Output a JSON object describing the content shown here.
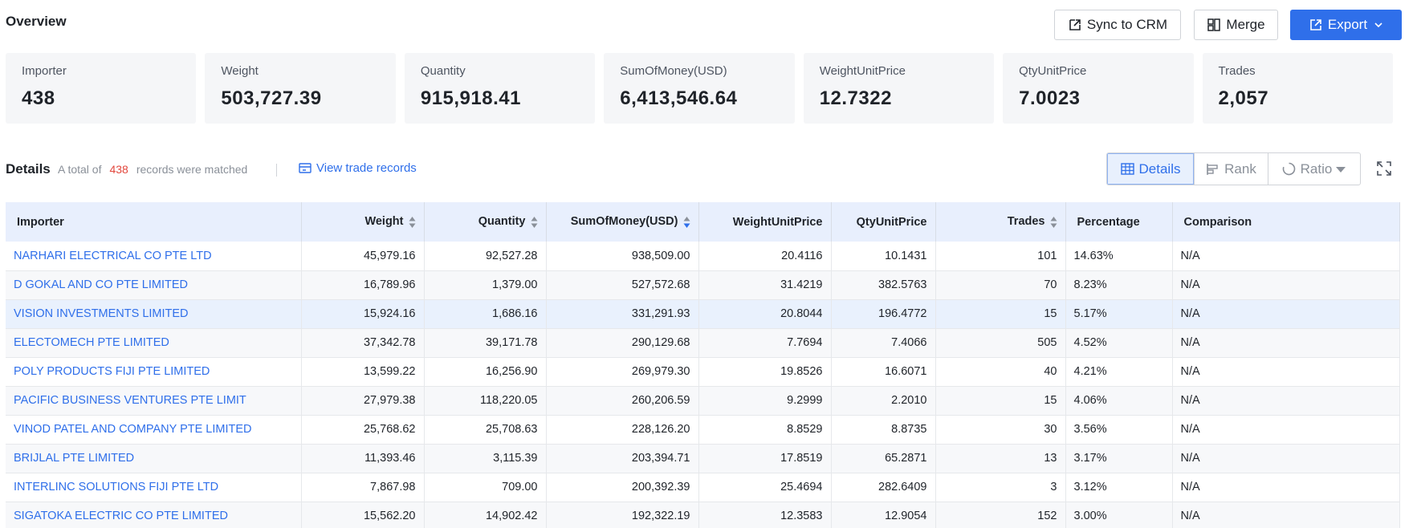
{
  "header": {
    "title": "Overview",
    "sync_label": "Sync to CRM",
    "merge_label": "Merge",
    "export_label": "Export"
  },
  "stats": [
    {
      "label": "Importer",
      "value": "438"
    },
    {
      "label": "Weight",
      "value": "503,727.39"
    },
    {
      "label": "Quantity",
      "value": "915,918.41"
    },
    {
      "label": "SumOfMoney(USD)",
      "value": "6,413,546.64"
    },
    {
      "label": "WeightUnitPrice",
      "value": "12.7322"
    },
    {
      "label": "QtyUnitPrice",
      "value": "7.0023"
    },
    {
      "label": "Trades",
      "value": "2,057"
    }
  ],
  "details": {
    "title": "Details",
    "prefix": "A total of",
    "count": "438",
    "suffix": "records were matched",
    "view_link": "View trade records",
    "toggle": {
      "details": "Details",
      "rank": "Rank",
      "ratio": "Ratio"
    }
  },
  "table": {
    "columns": [
      "Importer",
      "Weight",
      "Quantity",
      "SumOfMoney(USD)",
      "WeightUnitPrice",
      "QtyUnitPrice",
      "Trades",
      "Percentage",
      "Comparison"
    ],
    "rows": [
      [
        "NARHARI ELECTRICAL CO PTE LTD",
        "45,979.16",
        "92,527.28",
        "938,509.00",
        "20.4116",
        "10.1431",
        "101",
        "14.63%",
        "N/A"
      ],
      [
        "D GOKAL AND CO PTE LIMITED",
        "16,789.96",
        "1,379.00",
        "527,572.68",
        "31.4219",
        "382.5763",
        "70",
        "8.23%",
        "N/A"
      ],
      [
        "VISION INVESTMENTS LIMITED",
        "15,924.16",
        "1,686.16",
        "331,291.93",
        "20.8044",
        "196.4772",
        "15",
        "5.17%",
        "N/A"
      ],
      [
        "ELECTOMECH PTE LIMITED",
        "37,342.78",
        "39,171.78",
        "290,129.68",
        "7.7694",
        "7.4066",
        "505",
        "4.52%",
        "N/A"
      ],
      [
        "POLY PRODUCTS FIJI PTE LIMITED",
        "13,599.22",
        "16,256.90",
        "269,979.30",
        "19.8526",
        "16.6071",
        "40",
        "4.21%",
        "N/A"
      ],
      [
        "PACIFIC BUSINESS VENTURES PTE LIMIT",
        "27,979.38",
        "118,220.05",
        "260,206.59",
        "9.2999",
        "2.2010",
        "15",
        "4.06%",
        "N/A"
      ],
      [
        "VINOD PATEL AND COMPANY PTE LIMITED",
        "25,768.62",
        "25,708.63",
        "228,126.20",
        "8.8529",
        "8.8735",
        "30",
        "3.56%",
        "N/A"
      ],
      [
        "BRIJLAL PTE LIMITED",
        "11,393.46",
        "3,115.39",
        "203,394.71",
        "17.8519",
        "65.2871",
        "13",
        "3.17%",
        "N/A"
      ],
      [
        "INTERLINC SOLUTIONS FIJI PTE LTD",
        "7,867.98",
        "709.00",
        "200,392.39",
        "25.4694",
        "282.6409",
        "3",
        "3.12%",
        "N/A"
      ],
      [
        "SIGATOKA ELECTRIC CO PTE LIMITED",
        "15,562.20",
        "14,902.42",
        "192,322.19",
        "12.3583",
        "12.9054",
        "152",
        "3.00%",
        "N/A"
      ]
    ],
    "highlight_row": 2
  }
}
